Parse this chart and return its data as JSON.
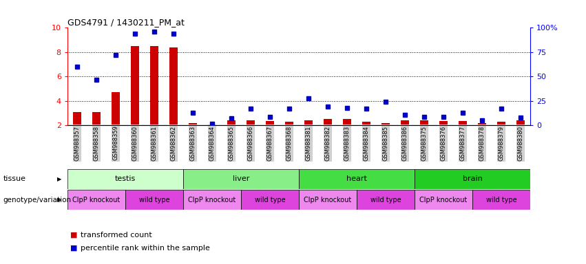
{
  "title": "GDS4791 / 1430211_PM_at",
  "samples": [
    "GSM988357",
    "GSM988358",
    "GSM988359",
    "GSM988360",
    "GSM988361",
    "GSM988362",
    "GSM988363",
    "GSM988364",
    "GSM988365",
    "GSM988366",
    "GSM988367",
    "GSM988368",
    "GSM988381",
    "GSM988382",
    "GSM988383",
    "GSM988384",
    "GSM988385",
    "GSM988386",
    "GSM988375",
    "GSM988376",
    "GSM988377",
    "GSM988378",
    "GSM988379",
    "GSM988380"
  ],
  "bar_values": [
    3.1,
    3.1,
    4.7,
    8.5,
    8.5,
    8.4,
    2.2,
    2.1,
    2.4,
    2.4,
    2.35,
    2.3,
    2.4,
    2.55,
    2.55,
    2.3,
    2.2,
    2.4,
    2.4,
    2.35,
    2.35,
    2.2,
    2.3,
    2.4
  ],
  "dot_pct": [
    60,
    47,
    72,
    94,
    96,
    94,
    13,
    2,
    7,
    17,
    9,
    17,
    28,
    19,
    18,
    17,
    24,
    11,
    9,
    9,
    13,
    5,
    17,
    8
  ],
  "ylim": [
    2,
    10
  ],
  "pct_ylim": [
    0,
    100
  ],
  "yticks_left": [
    2,
    4,
    6,
    8,
    10
  ],
  "yticks_right": [
    0,
    25,
    50,
    75,
    100
  ],
  "bar_color": "#cc0000",
  "dot_color": "#0000cc",
  "bar_width": 0.45,
  "tissue_groups": [
    {
      "label": "testis",
      "start": 0,
      "end": 5,
      "color": "#ccffcc"
    },
    {
      "label": "liver",
      "start": 6,
      "end": 11,
      "color": "#88ee88"
    },
    {
      "label": "heart",
      "start": 12,
      "end": 17,
      "color": "#44dd44"
    },
    {
      "label": "brain",
      "start": 18,
      "end": 23,
      "color": "#22cc22"
    }
  ],
  "genotype_groups": [
    {
      "label": "ClpP knockout",
      "start": 0,
      "end": 2,
      "color": "#ee88ee"
    },
    {
      "label": "wild type",
      "start": 3,
      "end": 5,
      "color": "#dd44dd"
    },
    {
      "label": "ClpP knockout",
      "start": 6,
      "end": 8,
      "color": "#ee88ee"
    },
    {
      "label": "wild type",
      "start": 9,
      "end": 11,
      "color": "#dd44dd"
    },
    {
      "label": "ClpP knockout",
      "start": 12,
      "end": 14,
      "color": "#ee88ee"
    },
    {
      "label": "wild type",
      "start": 15,
      "end": 17,
      "color": "#dd44dd"
    },
    {
      "label": "ClpP knockout",
      "start": 18,
      "end": 20,
      "color": "#ee88ee"
    },
    {
      "label": "wild type",
      "start": 21,
      "end": 23,
      "color": "#dd44dd"
    }
  ],
  "tissue_row_label": "tissue",
  "genotype_row_label": "genotype/variation",
  "legend_bar": "transformed count",
  "legend_dot": "percentile rank within the sample",
  "label_bg": "#d0d0d0",
  "fig_bg": "#ffffff"
}
